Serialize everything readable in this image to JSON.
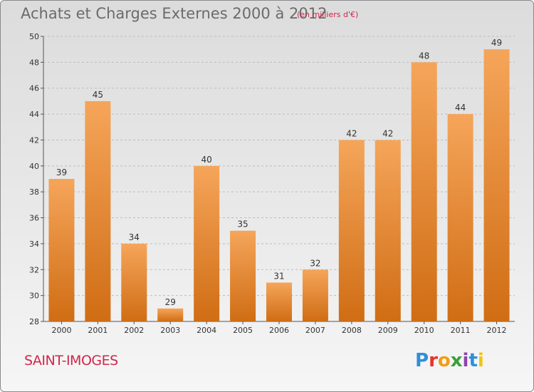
{
  "header": {
    "title": "Achats et Charges Externes 2000 à 2012",
    "subtitle": "(en milliers d'€)"
  },
  "footer": {
    "commune": "SAINT-IMOGES",
    "logo_text": "Proxiti",
    "logo_colors": [
      "#2f8fd8",
      "#e8322c",
      "#f39c12",
      "#3a9f3a",
      "#8e44ad",
      "#2f8fd8",
      "#f1c40f"
    ]
  },
  "colors": {
    "bar_light": "#f5a55a",
    "bar_dark": "#d06d14",
    "axis": "#555555",
    "grid": "#bdbdbd",
    "text": "#333333"
  },
  "chart_data": {
    "type": "bar",
    "categories": [
      "2000",
      "2001",
      "2002",
      "2003",
      "2004",
      "2005",
      "2006",
      "2007",
      "2008",
      "2009",
      "2010",
      "2011",
      "2012"
    ],
    "values": [
      39,
      45,
      34,
      29,
      40,
      35,
      31,
      32,
      42,
      42,
      48,
      44,
      49
    ],
    "title": "Achats et Charges Externes 2000 à 2012",
    "ylim": [
      28,
      50
    ],
    "yticks": [
      28,
      30,
      32,
      34,
      36,
      38,
      40,
      42,
      44,
      46,
      48,
      50
    ],
    "grid": true
  }
}
